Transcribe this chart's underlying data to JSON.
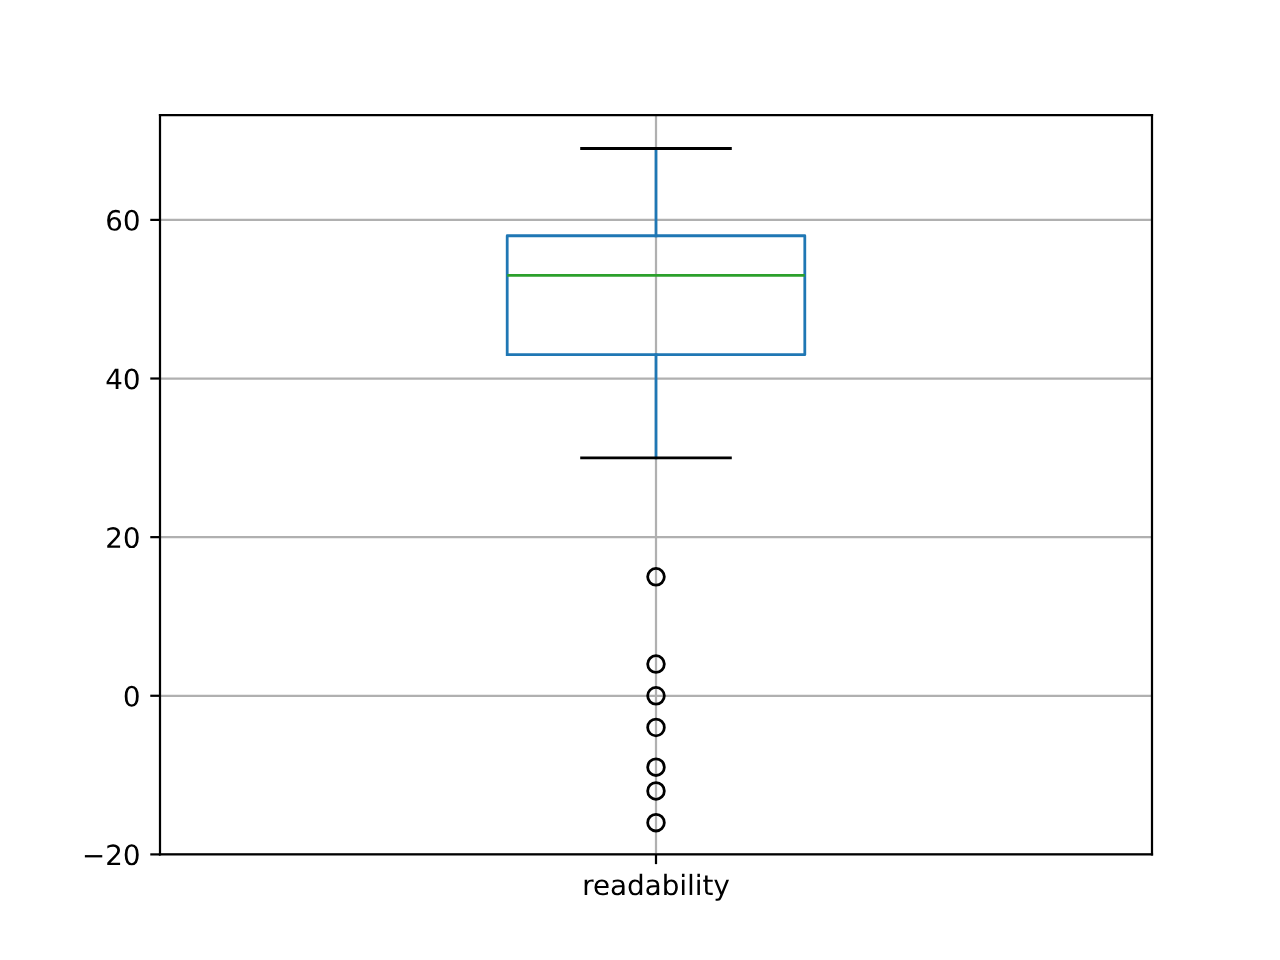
{
  "chart_data": {
    "type": "box",
    "categories": [
      "readability"
    ],
    "series": [
      {
        "color": "#1f77b4",
        "boxes": [
          {
            "low": 30,
            "q1": 43,
            "median": 53,
            "q3": 58,
            "high": 69,
            "outliers": [
              15,
              4,
              0,
              -4,
              -9,
              -12,
              -16
            ]
          }
        ]
      }
    ],
    "ylim": [
      -20,
      73.2
    ],
    "yticks": [
      {
        "value": -20,
        "label": "−20"
      },
      0,
      20,
      40,
      60
    ],
    "grid": true,
    "legend": false
  }
}
